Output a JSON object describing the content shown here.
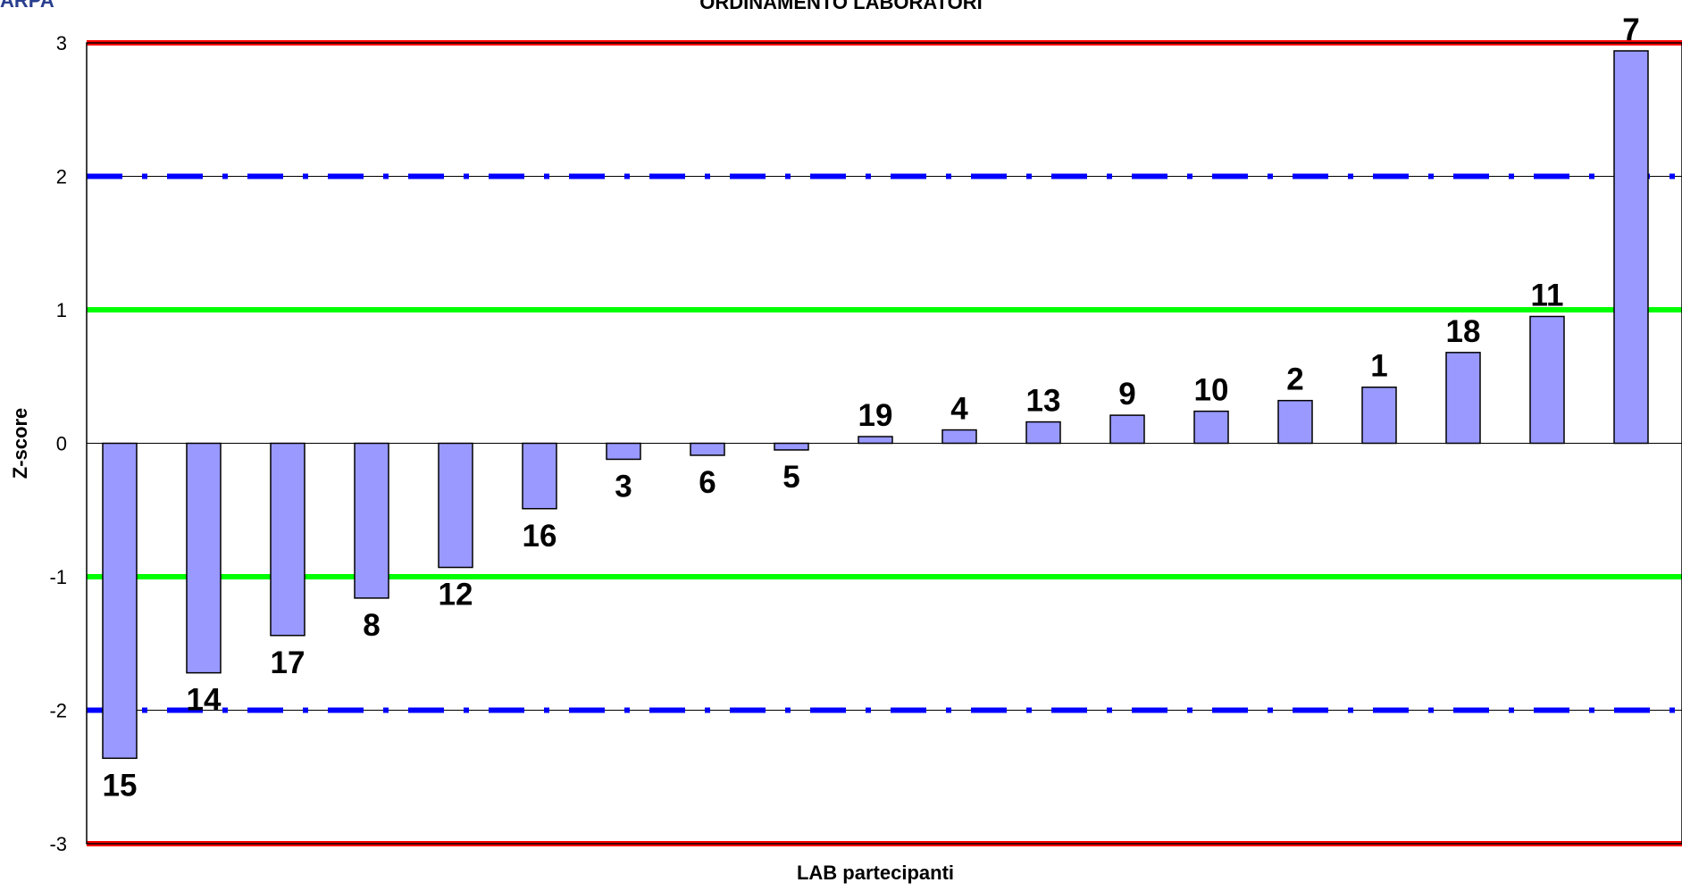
{
  "header": {
    "logo_text": "ARPA",
    "title": "ORDINAMENTO LABORATORI"
  },
  "colors": {
    "bar_fill": "#9999ff",
    "bar_stroke": "#000000",
    "limit_3": "#ff0000",
    "limit_2": "#0000ff",
    "limit_1": "#00ff00"
  },
  "chart_data": {
    "type": "bar",
    "categories": [
      "15",
      "14",
      "17",
      "8",
      "12",
      "16",
      "3",
      "6",
      "5",
      "19",
      "4",
      "13",
      "9",
      "10",
      "2",
      "1",
      "18",
      "11",
      "7"
    ],
    "values": [
      -2.36,
      -1.72,
      -1.44,
      -1.16,
      -0.93,
      -0.49,
      -0.12,
      -0.09,
      -0.05,
      0.05,
      0.1,
      0.16,
      0.21,
      0.24,
      0.32,
      0.42,
      0.68,
      0.95,
      2.94
    ],
    "xlabel": "LAB partecipanti",
    "ylabel": "Z-score",
    "ylim": [
      -3,
      3
    ],
    "yticks": [
      "3",
      "2",
      "1",
      "0",
      "-1",
      "-2",
      "-3"
    ],
    "reference_lines": [
      {
        "value": 3,
        "style": "solid",
        "color": "#ff0000"
      },
      {
        "value": -3,
        "style": "solid",
        "color": "#ff0000"
      },
      {
        "value": 2,
        "style": "dash-dot",
        "color": "#0000ff"
      },
      {
        "value": -2,
        "style": "dash-dot",
        "color": "#0000ff"
      },
      {
        "value": 1,
        "style": "solid",
        "color": "#00ff00"
      },
      {
        "value": -1,
        "style": "solid",
        "color": "#00ff00"
      }
    ],
    "grid": true,
    "legend": "none"
  }
}
